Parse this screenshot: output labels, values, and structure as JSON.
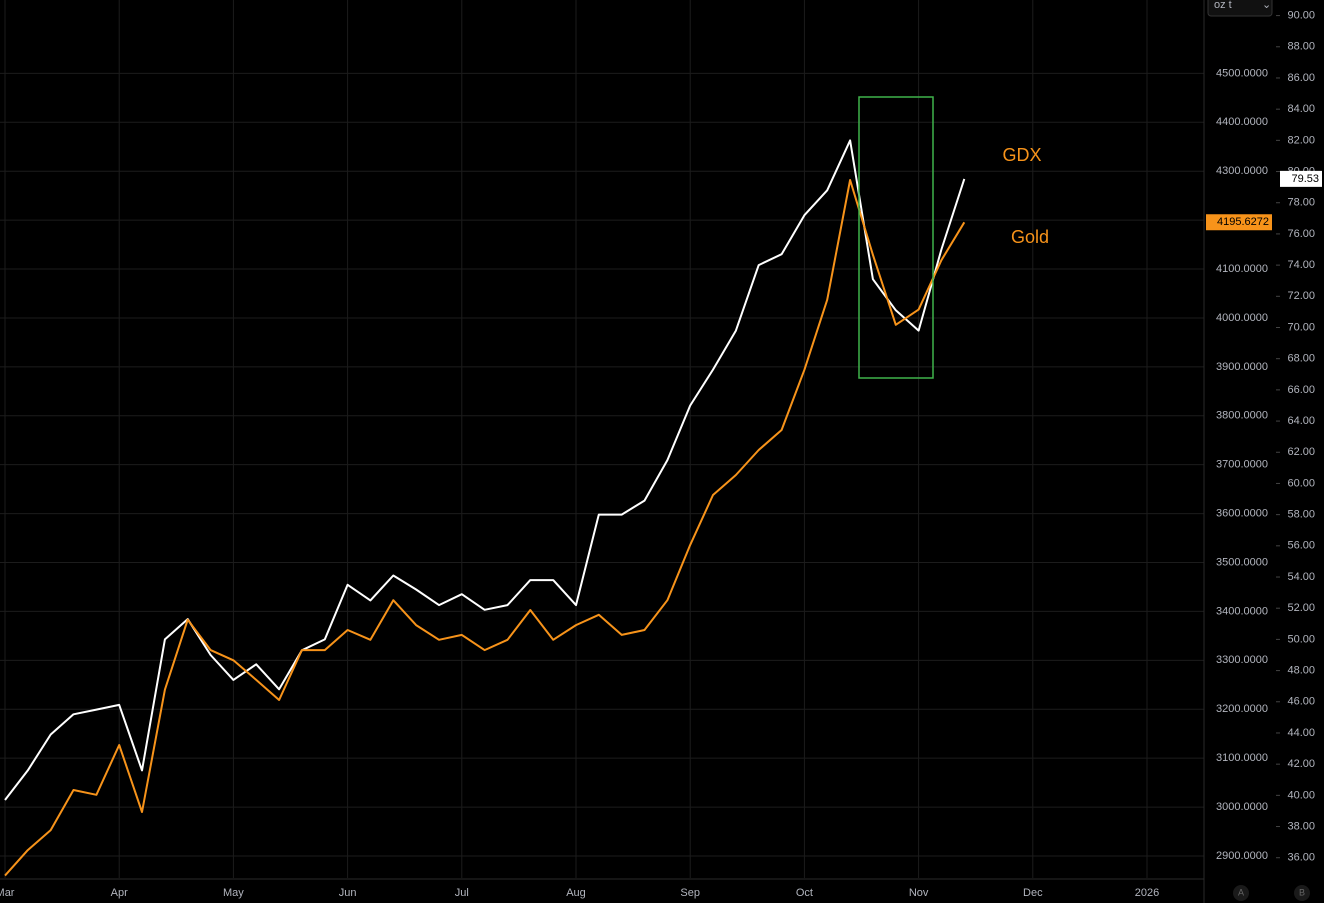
{
  "chart_data": {
    "type": "line",
    "categories": [
      "Mar",
      null,
      null,
      null,
      null,
      "Apr",
      null,
      null,
      null,
      null,
      "May",
      null,
      null,
      null,
      null,
      "Jun",
      null,
      null,
      null,
      null,
      "Jul",
      null,
      null,
      null,
      null,
      "Aug",
      null,
      null,
      null,
      null,
      "Sep",
      null,
      null,
      null,
      null,
      "Oct",
      null,
      null,
      null,
      null,
      "Nov",
      null,
      null,
      null,
      null,
      "Dec",
      null,
      null,
      null,
      null,
      "2026"
    ],
    "series": [
      {
        "name": "GDX",
        "color": "#ffffff",
        "axis": "y2",
        "values": [
          39.7,
          41.6,
          43.9,
          45.2,
          45.5,
          45.8,
          41.6,
          50.0,
          51.3,
          49.0,
          47.4,
          48.4,
          46.8,
          49.3,
          50.0,
          53.5,
          52.5,
          54.1,
          53.2,
          52.2,
          52.9,
          51.9,
          52.2,
          53.8,
          53.8,
          52.2,
          58.0,
          58.0,
          58.9,
          61.5,
          65.0,
          67.3,
          69.8,
          74.0,
          74.7,
          77.2,
          78.8,
          82.0,
          73.1,
          71.1,
          69.8,
          75.0,
          79.53,
          null,
          null,
          null,
          null,
          null,
          null,
          null,
          null
        ]
      },
      {
        "name": "Gold",
        "color": "#f7931a",
        "values": [
          2860,
          2912,
          2953,
          3035,
          3025,
          3127,
          2990,
          3240,
          3383,
          3321,
          3300,
          3260,
          3219,
          3321,
          3321,
          3362,
          3342,
          3423,
          3372,
          3342,
          3352,
          3321,
          3342,
          3403,
          3342,
          3372,
          3393,
          3352,
          3362,
          3423,
          3536,
          3638,
          3679,
          3730,
          3771,
          3894,
          4037,
          4282,
          4129,
          3986,
          4017,
          4118,
          4195.6272,
          null,
          null,
          null,
          null,
          null,
          null,
          null,
          null
        ]
      }
    ],
    "ylim": [
      2855,
      4650
    ],
    "yticks": [
      {
        "value": 2900,
        "label": "2900.0000"
      },
      {
        "value": 3000,
        "label": "3000.0000"
      },
      {
        "value": 3100,
        "label": "3100.0000"
      },
      {
        "value": 3200,
        "label": "3200.0000"
      },
      {
        "value": 3300,
        "label": "3300.0000"
      },
      {
        "value": 3400,
        "label": "3400.0000"
      },
      {
        "value": 3500,
        "label": "3500.0000"
      },
      {
        "value": 3600,
        "label": "3600.0000"
      },
      {
        "value": 3700,
        "label": "3700.0000"
      },
      {
        "value": 3800,
        "label": "3800.0000"
      },
      {
        "value": 3900,
        "label": "3900.0000"
      },
      {
        "value": 4000,
        "label": "4000.0000"
      },
      {
        "value": 4100,
        "label": "4100.0000"
      },
      {
        "value": 4200,
        "label": "4200.0000"
      },
      {
        "value": 4300,
        "label": "4300.0000"
      },
      {
        "value": 4400,
        "label": "4400.0000"
      },
      {
        "value": 4500,
        "label": "4500.0000"
      }
    ],
    "y2lim": [
      34.7,
      91
    ],
    "y2ticks": [
      {
        "value": 36,
        "label": "36.00"
      },
      {
        "value": 38,
        "label": "38.00"
      },
      {
        "value": 40,
        "label": "40.00"
      },
      {
        "value": 42,
        "label": "42.00"
      },
      {
        "value": 44,
        "label": "44.00"
      },
      {
        "value": 46,
        "label": "46.00"
      },
      {
        "value": 48,
        "label": "48.00"
      },
      {
        "value": 50,
        "label": "50.00"
      },
      {
        "value": 52,
        "label": "52.00"
      },
      {
        "value": 54,
        "label": "54.00"
      },
      {
        "value": 56,
        "label": "56.00"
      },
      {
        "value": 58,
        "label": "58.00"
      },
      {
        "value": 60,
        "label": "60.00"
      },
      {
        "value": 62,
        "label": "62.00"
      },
      {
        "value": 64,
        "label": "64.00"
      },
      {
        "value": 66,
        "label": "66.00"
      },
      {
        "value": 68,
        "label": "68.00"
      },
      {
        "value": 70,
        "label": "70.00"
      },
      {
        "value": 72,
        "label": "72.00"
      },
      {
        "value": 74,
        "label": "74.00"
      },
      {
        "value": 76,
        "label": "76.00"
      },
      {
        "value": 78,
        "label": "78.00"
      },
      {
        "value": 80,
        "label": "80.00"
      },
      {
        "value": 82,
        "label": "82.00"
      },
      {
        "value": 84,
        "label": "84.00"
      },
      {
        "value": 86,
        "label": "86.00"
      },
      {
        "value": 88,
        "label": "88.00"
      },
      {
        "value": 90,
        "label": "90.00"
      }
    ],
    "grid": true,
    "annotations": [
      "GDX",
      "Gold"
    ],
    "unit_menu": "oz t",
    "buttons": [
      "A",
      "B"
    ]
  }
}
